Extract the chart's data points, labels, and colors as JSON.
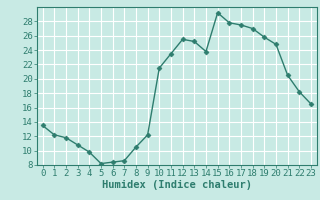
{
  "x": [
    0,
    1,
    2,
    3,
    4,
    5,
    6,
    7,
    8,
    9,
    10,
    11,
    12,
    13,
    14,
    15,
    16,
    17,
    18,
    19,
    20,
    21,
    22,
    23
  ],
  "y": [
    13.5,
    12.2,
    11.8,
    10.8,
    9.8,
    8.2,
    8.4,
    8.6,
    10.5,
    12.2,
    21.5,
    23.5,
    25.5,
    25.2,
    23.8,
    29.2,
    27.8,
    27.5,
    27.0,
    25.8,
    24.8,
    20.5,
    18.2,
    16.5
  ],
  "line_color": "#2e7d6e",
  "marker": "D",
  "marker_size": 2.5,
  "bg_color": "#c8eae4",
  "grid_color": "#ffffff",
  "xlabel": "Humidex (Indice chaleur)",
  "ylim": [
    8,
    30
  ],
  "xlim": [
    -0.5,
    23.5
  ],
  "yticks": [
    8,
    10,
    12,
    14,
    16,
    18,
    20,
    22,
    24,
    26,
    28
  ],
  "xticks": [
    0,
    1,
    2,
    3,
    4,
    5,
    6,
    7,
    8,
    9,
    10,
    11,
    12,
    13,
    14,
    15,
    16,
    17,
    18,
    19,
    20,
    21,
    22,
    23
  ],
  "xtick_labels": [
    "0",
    "1",
    "2",
    "3",
    "4",
    "5",
    "6",
    "7",
    "8",
    "9",
    "10",
    "11",
    "12",
    "13",
    "14",
    "15",
    "16",
    "17",
    "18",
    "19",
    "20",
    "21",
    "22",
    "23"
  ],
  "xlabel_fontsize": 7.5,
  "tick_fontsize": 6.5,
  "spine_color": "#2e7d6e",
  "tick_color": "#2e7d6e"
}
